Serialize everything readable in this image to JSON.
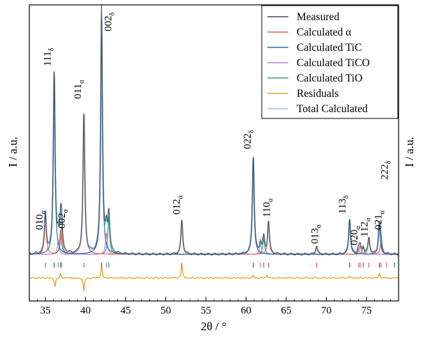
{
  "chart_data": {
    "type": "line",
    "xlabel": "2θ / °",
    "ylabel": "I / a.u.",
    "ylabel_right": "I / a.u.",
    "xlim": [
      33,
      79
    ],
    "xticks": [
      35,
      40,
      45,
      50,
      55,
      60,
      65,
      70,
      75
    ],
    "grid": false,
    "legend_position": "top-right",
    "legend": [
      {
        "label": "Measured",
        "color": "#4a4a4a"
      },
      {
        "label": "Calculated α",
        "color": "#e8675f"
      },
      {
        "label": "Calculated TiC",
        "color": "#2a73ad"
      },
      {
        "label": "Calculated TiCO",
        "color": "#c77fd8"
      },
      {
        "label": "Calculated TiO",
        "color": "#34a47b"
      },
      {
        "label": "Residuals",
        "color": "#e0a323"
      },
      {
        "label": "Total Calculated",
        "color": "#9cc3ea"
      }
    ],
    "colors": {
      "measured": "#4a4a4a",
      "alpha": "#e8675f",
      "tic": "#2a73ad",
      "tico": "#c77fd8",
      "tio": "#34a47b",
      "residuals": "#e0a323",
      "total": "#9cc3ea"
    },
    "series": [
      {
        "name": "Calculated α",
        "phase": "alpha",
        "peaks": [
          [
            35.0,
            0.15
          ],
          [
            37.0,
            0.1
          ],
          [
            39.8,
            0.52
          ],
          [
            52.0,
            0.125
          ],
          [
            62.8,
            0.12
          ],
          [
            68.8,
            0.03
          ],
          [
            74.2,
            0.03
          ],
          [
            75.3,
            0.06
          ],
          [
            76.8,
            0.04
          ]
        ]
      },
      {
        "name": "Calculated TiC",
        "phase": "tic",
        "peaks": [
          [
            36.1,
            0.67
          ],
          [
            42.0,
            0.86
          ],
          [
            60.9,
            0.36
          ],
          [
            72.9,
            0.13
          ],
          [
            76.6,
            0.11
          ]
        ]
      },
      {
        "name": "Calculated TiCO",
        "phase": "tico",
        "peaks": [
          [
            36.6,
            0.05
          ],
          [
            42.6,
            0.08
          ],
          [
            61.8,
            0.04
          ],
          [
            74.0,
            0.02
          ]
        ]
      },
      {
        "name": "Calculated TiO",
        "phase": "tio",
        "peaks": [
          [
            36.9,
            0.09
          ],
          [
            42.9,
            0.14
          ],
          [
            62.2,
            0.06
          ],
          [
            74.6,
            0.025
          ]
        ]
      }
    ],
    "measured_peaks": [
      [
        36.1,
        0.67
      ],
      [
        42.0,
        0.93
      ],
      [
        60.9,
        0.36
      ],
      [
        72.9,
        0.13
      ],
      [
        76.6,
        0.11
      ]
    ],
    "reflection_ticks": {
      "alpha": [
        35.0,
        37.0,
        39.8,
        52.0,
        62.8,
        68.8,
        74.2,
        75.3,
        76.8
      ],
      "tic": [
        36.1,
        42.0,
        60.9,
        72.9,
        76.6
      ],
      "tico": [
        36.6,
        42.6,
        61.8,
        74.0,
        77.5
      ],
      "tio": [
        36.9,
        42.9,
        62.2,
        74.6,
        78.5
      ]
    },
    "residual_features": [
      [
        36.2,
        -0.1
      ],
      [
        36.9,
        0.05
      ],
      [
        39.8,
        -0.16
      ],
      [
        42.0,
        0.14
      ],
      [
        52.0,
        0.16
      ],
      [
        60.9,
        0.03
      ],
      [
        62.6,
        0.04
      ],
      [
        72.9,
        0.02
      ],
      [
        76.6,
        0.05
      ]
    ],
    "peak_labels": [
      {
        "main": "010",
        "sub": "α",
        "x": 35.0
      },
      {
        "main": "111",
        "sub": "δ",
        "x": 36.1
      },
      {
        "main": "002",
        "sub": "α",
        "x": 37.0
      },
      {
        "main": "011",
        "sub": "α",
        "x": 39.8
      },
      {
        "main": "002",
        "sub": "δ",
        "x": 42.0
      },
      {
        "main": "012",
        "sub": "α",
        "x": 52.0
      },
      {
        "main": "022",
        "sub": "δ",
        "x": 60.9
      },
      {
        "main": "110",
        "sub": "α",
        "x": 62.8
      },
      {
        "main": "013",
        "sub": "α",
        "x": 68.8
      },
      {
        "main": "113",
        "sub": "δ",
        "x": 72.9
      },
      {
        "main": "020",
        "sub": "α",
        "x": 74.2
      },
      {
        "main": "112",
        "sub": "α",
        "x": 75.3
      },
      {
        "main": "021",
        "sub": "α",
        "x": 76.8
      },
      {
        "main": "222",
        "sub": "δ",
        "x": 76.6
      }
    ]
  }
}
